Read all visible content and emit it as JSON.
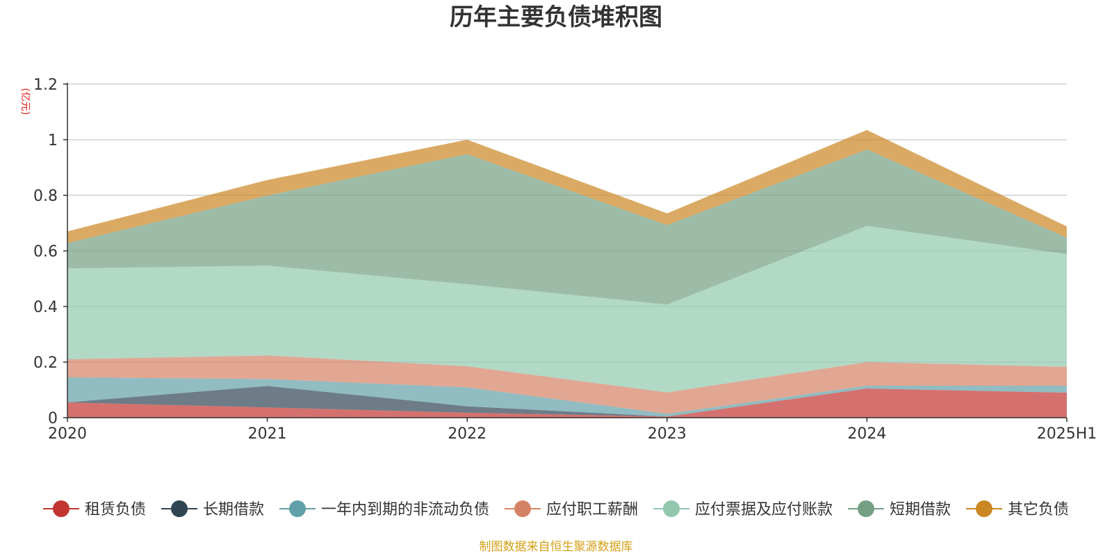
{
  "chart_data": {
    "type": "area",
    "stacked": true,
    "title": "历年主要负债堆积图",
    "unit_label": "(亿元)",
    "categories": [
      "2020",
      "2021",
      "2022",
      "2023",
      "2024",
      "2025H1"
    ],
    "ylim": [
      0,
      1.2
    ],
    "yticks": [
      "0",
      "0.2",
      "0.4",
      "0.6",
      "0.8",
      "1",
      "1.2"
    ],
    "ytick_values": [
      0,
      0.2,
      0.4,
      0.6,
      0.8,
      1.0,
      1.2
    ],
    "grid": true,
    "legend_position": "bottom",
    "series": [
      {
        "name": "租赁负债",
        "color": "#c23531",
        "values": [
          0.055,
          0.037,
          0.018,
          0.004,
          0.105,
          0.09
        ]
      },
      {
        "name": "长期借款",
        "color": "#2f4554",
        "values": [
          0.0,
          0.077,
          0.023,
          0.0,
          0.0,
          0.0
        ]
      },
      {
        "name": "一年内到期的非流动负债",
        "color": "#61a0a8",
        "values": [
          0.09,
          0.025,
          0.068,
          0.01,
          0.01,
          0.025
        ]
      },
      {
        "name": "应付职工薪酬",
        "color": "#d48265",
        "values": [
          0.065,
          0.085,
          0.076,
          0.077,
          0.085,
          0.068
        ]
      },
      {
        "name": "应付票据及应付账款",
        "color": "#91c7ae",
        "values": [
          0.327,
          0.323,
          0.295,
          0.316,
          0.49,
          0.405
        ]
      },
      {
        "name": "短期借款",
        "color": "#749f83",
        "values": [
          0.091,
          0.252,
          0.468,
          0.286,
          0.275,
          0.06
        ]
      },
      {
        "name": "其它负债",
        "color": "#ca8622",
        "values": [
          0.042,
          0.056,
          0.052,
          0.042,
          0.07,
          0.04
        ]
      }
    ]
  },
  "source_note": "制图数据来自恒生聚源数据库"
}
